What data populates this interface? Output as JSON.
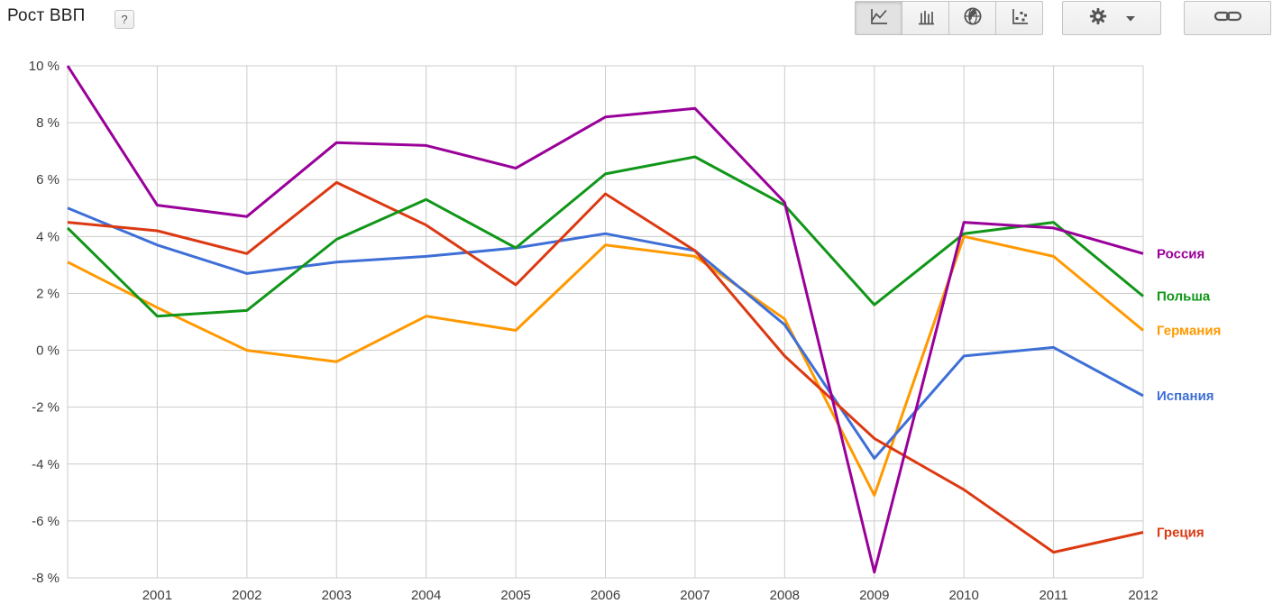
{
  "page": {
    "title": "Рост ВВП",
    "help_button_label": "?"
  },
  "toolbar": {
    "chart_type_buttons": [
      {
        "id": "line-chart",
        "icon": "line-chart-icon",
        "selected": true
      },
      {
        "id": "bar-chart",
        "icon": "bar-chart-icon",
        "selected": false
      },
      {
        "id": "map",
        "icon": "globe-icon",
        "selected": false
      },
      {
        "id": "bubble-chart",
        "icon": "scatter-icon",
        "selected": false
      }
    ],
    "settings_button": {
      "icon": "gear-icon",
      "has_dropdown": true
    },
    "link_button": {
      "icon": "link-icon"
    }
  },
  "chart_data": {
    "type": "line",
    "title": "Рост ВВП",
    "unit": "%",
    "grid": true,
    "legend_position": "right-at-line-end",
    "xlim": [
      2000,
      2012
    ],
    "ylim": [
      -8,
      10
    ],
    "x": [
      2000,
      2001,
      2002,
      2003,
      2004,
      2005,
      2006,
      2007,
      2008,
      2009,
      2010,
      2011,
      2012
    ],
    "xticks": [
      {
        "value": 2001,
        "label": "2001"
      },
      {
        "value": 2002,
        "label": "2002"
      },
      {
        "value": 2003,
        "label": "2003"
      },
      {
        "value": 2004,
        "label": "2004"
      },
      {
        "value": 2005,
        "label": "2005"
      },
      {
        "value": 2006,
        "label": "2006"
      },
      {
        "value": 2007,
        "label": "2007"
      },
      {
        "value": 2008,
        "label": "2008"
      },
      {
        "value": 2009,
        "label": "2009"
      },
      {
        "value": 2010,
        "label": "2010"
      },
      {
        "value": 2011,
        "label": "2011"
      },
      {
        "value": 2012,
        "label": "2012"
      }
    ],
    "yticks": [
      {
        "value": 10,
        "label": "10 %"
      },
      {
        "value": 8,
        "label": "8 %"
      },
      {
        "value": 6,
        "label": "6 %"
      },
      {
        "value": 4,
        "label": "4 %"
      },
      {
        "value": 2,
        "label": "2 %"
      },
      {
        "value": 0,
        "label": "0 %"
      },
      {
        "value": -2,
        "label": "-2 %"
      },
      {
        "value": -4,
        "label": "-4 %"
      },
      {
        "value": -6,
        "label": "-6 %"
      },
      {
        "value": -8,
        "label": "-8 %"
      }
    ],
    "series": [
      {
        "id": "russia",
        "name": "Россия",
        "color": "#990099",
        "values": [
          10.0,
          5.1,
          4.7,
          7.3,
          7.2,
          6.4,
          8.2,
          8.5,
          5.2,
          -7.8,
          4.5,
          4.3,
          3.4
        ]
      },
      {
        "id": "poland",
        "name": "Польша",
        "color": "#109618",
        "values": [
          4.3,
          1.2,
          1.4,
          3.9,
          5.3,
          3.6,
          6.2,
          6.8,
          5.1,
          1.6,
          4.1,
          4.5,
          1.9
        ]
      },
      {
        "id": "germany",
        "name": "Германия",
        "color": "#FF9900",
        "values": [
          3.1,
          1.5,
          0.0,
          -0.4,
          1.2,
          0.7,
          3.7,
          3.3,
          1.1,
          -5.1,
          4.0,
          3.3,
          0.7
        ]
      },
      {
        "id": "spain",
        "name": "Испания",
        "color": "#3E6FD7",
        "values": [
          5.0,
          3.7,
          2.7,
          3.1,
          3.3,
          3.6,
          4.1,
          3.5,
          0.9,
          -3.8,
          -0.2,
          0.1,
          -1.6
        ]
      },
      {
        "id": "greece",
        "name": "Греция",
        "color": "#DC3912",
        "values": [
          4.5,
          4.2,
          3.4,
          5.9,
          4.4,
          2.3,
          5.5,
          3.5,
          -0.2,
          -3.1,
          -4.9,
          -7.1,
          -6.4
        ]
      }
    ],
    "draw_order": [
      "germany",
      "spain",
      "greece",
      "poland",
      "russia"
    ],
    "colors": {
      "gridline": "#cccccc",
      "axis_text": "#3c3c3c"
    }
  }
}
